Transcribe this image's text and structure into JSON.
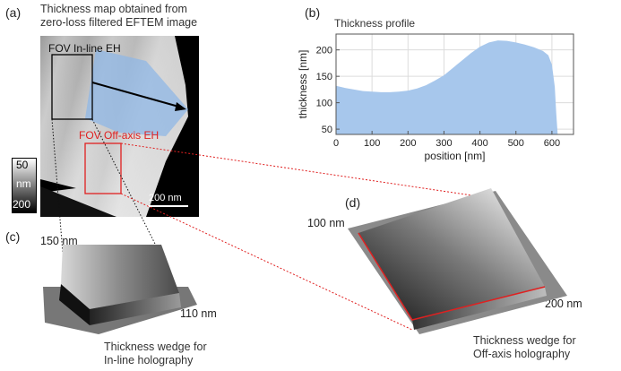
{
  "panel_a": {
    "letter": "(a)",
    "title_line1": "Thickness map obtained from",
    "title_line2": "zero-loss filtered EFTEM image",
    "fov_inline_label": "FOV In-line EH",
    "fov_offaxis_label": "FOV Off-axis EH",
    "scalebar_label": "200 nm",
    "colorbar_top": "50",
    "colorbar_mid": "nm",
    "colorbar_bottom": "200",
    "colors": {
      "inline_box": "#000000",
      "offaxis_box": "#e02020",
      "profile_overlay": "#8fb7e6"
    }
  },
  "panel_b": {
    "letter": "(b)"
  },
  "panel_c": {
    "letter": "(c)",
    "dim_left": "150 nm",
    "dim_right": "110 nm",
    "caption_line1": "Thickness wedge for",
    "caption_line2": "In-line holography"
  },
  "panel_d": {
    "letter": "(d)",
    "dim_left": "100 nm",
    "dim_right": "200 nm",
    "caption_line1": "Thickness wedge for",
    "caption_line2": "Off-axis holography",
    "edge_color": "#e02020"
  },
  "chart_data": {
    "type": "area",
    "title": "Thickness profile",
    "xlabel": "position [nm]",
    "ylabel": "thickness [nm]",
    "xlim": [
      0,
      660
    ],
    "ylim": [
      40,
      230
    ],
    "xticks": [
      0,
      100,
      200,
      300,
      400,
      500,
      600
    ],
    "yticks": [
      50,
      100,
      150,
      200
    ],
    "grid": true,
    "fill_color": "#a7c7ec",
    "x": [
      0,
      25,
      50,
      75,
      100,
      125,
      150,
      175,
      200,
      225,
      250,
      275,
      300,
      325,
      350,
      375,
      400,
      425,
      450,
      475,
      500,
      525,
      550,
      575,
      590,
      600,
      608,
      612,
      616
    ],
    "y": [
      132,
      128,
      125,
      122,
      121,
      120,
      120,
      121,
      123,
      127,
      133,
      142,
      152,
      166,
      180,
      194,
      206,
      214,
      218,
      217,
      214,
      210,
      205,
      198,
      190,
      172,
      130,
      80,
      40
    ]
  }
}
